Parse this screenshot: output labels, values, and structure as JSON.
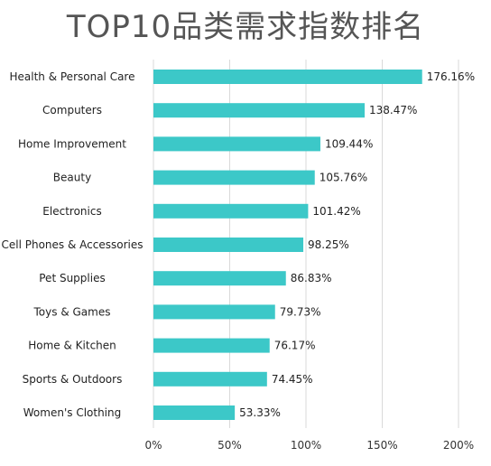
{
  "chart_data": {
    "type": "bar",
    "orientation": "horizontal",
    "title": "TOP10品类需求指数排名",
    "categories": [
      "Health & Personal Care",
      "Computers",
      "Home Improvement",
      "Beauty",
      "Electronics",
      "Cell Phones & Accessories",
      "Pet Supplies",
      "Toys & Games",
      "Home & Kitchen",
      "Sports & Outdoors",
      "Women's Clothing"
    ],
    "values": [
      176.16,
      138.47,
      109.44,
      105.76,
      101.42,
      98.25,
      86.83,
      79.73,
      76.17,
      74.45,
      53.33
    ],
    "value_labels": [
      "176.16%",
      "138.47%",
      "109.44%",
      "105.76%",
      "101.42%",
      "98.25%",
      "86.83%",
      "79.73%",
      "76.17%",
      "74.45%",
      "53.33%"
    ],
    "xlim": [
      0,
      200
    ],
    "x_ticks": [
      "0%",
      "50%",
      "100%",
      "150%",
      "200%"
    ],
    "grid": "vertical",
    "legend": "none",
    "bar_color": "#3cc8c8",
    "grid_color": "#d9d9d9"
  }
}
